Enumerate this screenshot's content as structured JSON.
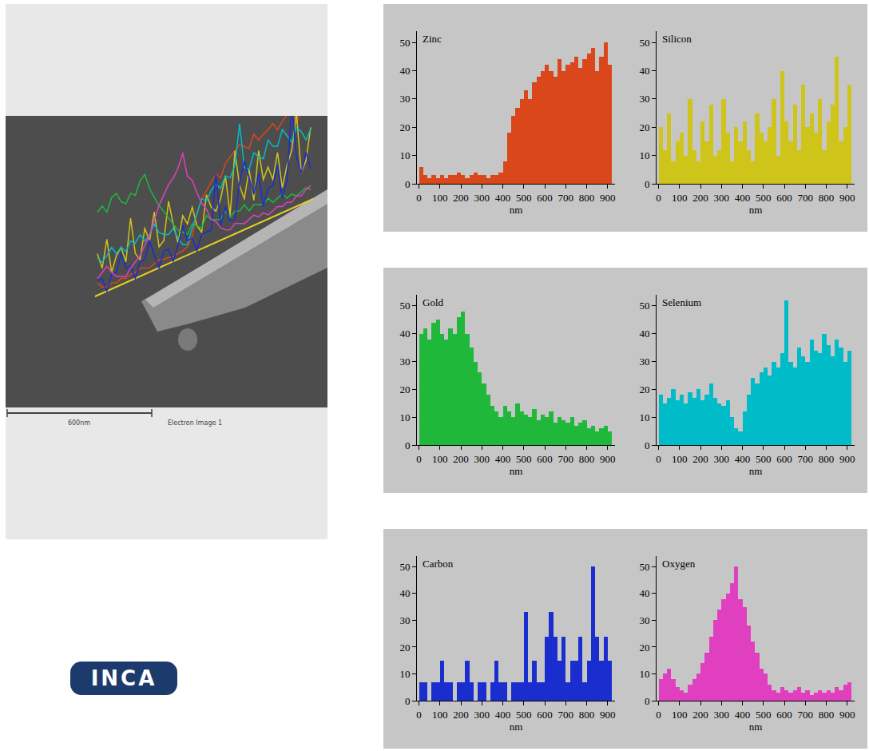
{
  "chart_data": [
    {
      "type": "histogram",
      "title": "Zinc",
      "color": "#d9471a",
      "xlabel": "nm",
      "bins": [
        0,
        20,
        40,
        60,
        80,
        100,
        120,
        140,
        160,
        180,
        200,
        220,
        240,
        260,
        280,
        300,
        320,
        340,
        360,
        380,
        400,
        420,
        440,
        460,
        480,
        500,
        520,
        540,
        560,
        580,
        600,
        620,
        640,
        660,
        680,
        700,
        720,
        740,
        760,
        780,
        800,
        820,
        840,
        860,
        880,
        900,
        920
      ],
      "values": [
        6,
        3,
        2,
        3,
        2,
        3,
        2,
        3,
        3,
        4,
        3,
        2,
        3,
        4,
        3,
        3,
        2,
        3,
        3,
        4,
        8,
        18,
        24,
        27,
        30,
        33,
        30,
        36,
        38,
        40,
        42,
        40,
        38,
        44,
        40,
        42,
        43,
        45,
        41,
        44,
        46,
        48,
        40,
        45,
        50,
        42
      ],
      "xlim": [
        -10,
        935
      ],
      "xticks": [
        0,
        100,
        200,
        300,
        400,
        500,
        600,
        700,
        800,
        900
      ],
      "ylim": [
        0,
        54
      ],
      "yticks": [
        0,
        10,
        20,
        30,
        40,
        50
      ],
      "grid": false
    },
    {
      "type": "histogram",
      "title": "Silicon",
      "color": "#cfc41a",
      "xlabel": "nm",
      "bins": [
        0,
        20,
        40,
        60,
        80,
        100,
        120,
        140,
        160,
        180,
        200,
        220,
        240,
        260,
        280,
        300,
        320,
        340,
        360,
        380,
        400,
        420,
        440,
        460,
        480,
        500,
        520,
        540,
        560,
        580,
        600,
        620,
        640,
        660,
        680,
        700,
        720,
        740,
        760,
        780,
        800,
        820,
        840,
        860,
        880,
        900,
        920
      ],
      "values": [
        20,
        12,
        25,
        8,
        15,
        18,
        10,
        30,
        12,
        8,
        22,
        15,
        28,
        10,
        12,
        30,
        18,
        8,
        20,
        15,
        22,
        12,
        8,
        25,
        18,
        15,
        20,
        30,
        10,
        40,
        22,
        15,
        28,
        12,
        35,
        20,
        25,
        18,
        30,
        12,
        22,
        28,
        45,
        15,
        20,
        35
      ],
      "xlim": [
        -10,
        935
      ],
      "xticks": [
        0,
        100,
        200,
        300,
        400,
        500,
        600,
        700,
        800,
        900
      ],
      "ylim": [
        0,
        54
      ],
      "yticks": [
        0,
        10,
        20,
        30,
        40,
        50
      ],
      "grid": false
    },
    {
      "type": "histogram",
      "title": "Gold",
      "color": "#1fb83a",
      "xlabel": "nm",
      "bins": [
        0,
        20,
        40,
        60,
        80,
        100,
        120,
        140,
        160,
        180,
        200,
        220,
        240,
        260,
        280,
        300,
        320,
        340,
        360,
        380,
        400,
        420,
        440,
        460,
        480,
        500,
        520,
        540,
        560,
        580,
        600,
        620,
        640,
        660,
        680,
        700,
        720,
        740,
        760,
        780,
        800,
        820,
        840,
        860,
        880,
        900,
        920
      ],
      "values": [
        40,
        42,
        38,
        44,
        45,
        40,
        38,
        42,
        40,
        46,
        48,
        40,
        35,
        30,
        26,
        22,
        18,
        14,
        12,
        10,
        14,
        12,
        10,
        15,
        12,
        11,
        10,
        13,
        9,
        11,
        10,
        12,
        8,
        10,
        9,
        8,
        10,
        7,
        8,
        9,
        6,
        7,
        5,
        6,
        7,
        5
      ],
      "xlim": [
        -10,
        935
      ],
      "xticks": [
        0,
        100,
        200,
        300,
        400,
        500,
        600,
        700,
        800,
        900
      ],
      "ylim": [
        0,
        54
      ],
      "yticks": [
        0,
        10,
        20,
        30,
        40,
        50
      ],
      "grid": false
    },
    {
      "type": "histogram",
      "title": "Selenium",
      "color": "#00bcc8",
      "xlabel": "nm",
      "bins": [
        0,
        20,
        40,
        60,
        80,
        100,
        120,
        140,
        160,
        180,
        200,
        220,
        240,
        260,
        280,
        300,
        320,
        340,
        360,
        380,
        400,
        420,
        440,
        460,
        480,
        500,
        520,
        540,
        560,
        580,
        600,
        620,
        640,
        660,
        680,
        700,
        720,
        740,
        760,
        780,
        800,
        820,
        840,
        860,
        880,
        900,
        920
      ],
      "values": [
        18,
        15,
        17,
        20,
        16,
        18,
        15,
        19,
        17,
        20,
        16,
        18,
        22,
        17,
        15,
        14,
        16,
        10,
        6,
        5,
        12,
        18,
        24,
        22,
        26,
        28,
        25,
        30,
        28,
        33,
        52,
        30,
        28,
        35,
        32,
        30,
        38,
        34,
        33,
        40,
        36,
        32,
        38,
        35,
        30,
        34
      ],
      "xlim": [
        -10,
        935
      ],
      "xticks": [
        0,
        100,
        200,
        300,
        400,
        500,
        600,
        700,
        800,
        900
      ],
      "ylim": [
        0,
        54
      ],
      "yticks": [
        0,
        10,
        20,
        30,
        40,
        50
      ],
      "grid": false
    },
    {
      "type": "histogram",
      "title": "Carbon",
      "color": "#1a2ecf",
      "xlabel": "nm",
      "bins": [
        0,
        20,
        40,
        60,
        80,
        100,
        120,
        140,
        160,
        180,
        200,
        220,
        240,
        260,
        280,
        300,
        320,
        340,
        360,
        380,
        400,
        420,
        440,
        460,
        480,
        500,
        520,
        540,
        560,
        580,
        600,
        620,
        640,
        660,
        680,
        700,
        720,
        740,
        760,
        780,
        800,
        820,
        840,
        860,
        880,
        900,
        920
      ],
      "values": [
        7,
        7,
        0,
        7,
        7,
        15,
        7,
        7,
        0,
        7,
        7,
        15,
        7,
        0,
        7,
        7,
        0,
        7,
        15,
        7,
        7,
        0,
        7,
        7,
        7,
        33,
        7,
        15,
        7,
        7,
        24,
        33,
        24,
        15,
        24,
        7,
        15,
        15,
        24,
        7,
        15,
        50,
        24,
        15,
        24,
        15
      ],
      "xlim": [
        -10,
        935
      ],
      "xticks": [
        0,
        100,
        200,
        300,
        400,
        500,
        600,
        700,
        800,
        900
      ],
      "ylim": [
        0,
        54
      ],
      "yticks": [
        0,
        10,
        20,
        30,
        40,
        50
      ],
      "grid": false
    },
    {
      "type": "histogram",
      "title": "Oxygen",
      "color": "#e040c0",
      "xlabel": "nm",
      "bins": [
        0,
        20,
        40,
        60,
        80,
        100,
        120,
        140,
        160,
        180,
        200,
        220,
        240,
        260,
        280,
        300,
        320,
        340,
        360,
        380,
        400,
        420,
        440,
        460,
        480,
        500,
        520,
        540,
        560,
        580,
        600,
        620,
        640,
        660,
        680,
        700,
        720,
        740,
        760,
        780,
        800,
        820,
        840,
        860,
        880,
        900,
        920
      ],
      "values": [
        8,
        10,
        12,
        8,
        5,
        4,
        3,
        6,
        8,
        10,
        14,
        18,
        24,
        30,
        34,
        38,
        40,
        44,
        50,
        38,
        35,
        28,
        22,
        18,
        12,
        10,
        6,
        4,
        3,
        5,
        4,
        3,
        4,
        5,
        3,
        4,
        2,
        3,
        4,
        3,
        4,
        3,
        5,
        4,
        6,
        7
      ],
      "xlim": [
        -10,
        935
      ],
      "xticks": [
        0,
        100,
        200,
        300,
        400,
        500,
        600,
        700,
        800,
        900
      ],
      "ylim": [
        0,
        54
      ],
      "yticks": [
        0,
        10,
        20,
        30,
        40,
        50
      ],
      "grid": false
    }
  ],
  "image_panel": {
    "scale_bar_label": "600nm",
    "caption": "Electron Image 1"
  },
  "logo": "INCA"
}
